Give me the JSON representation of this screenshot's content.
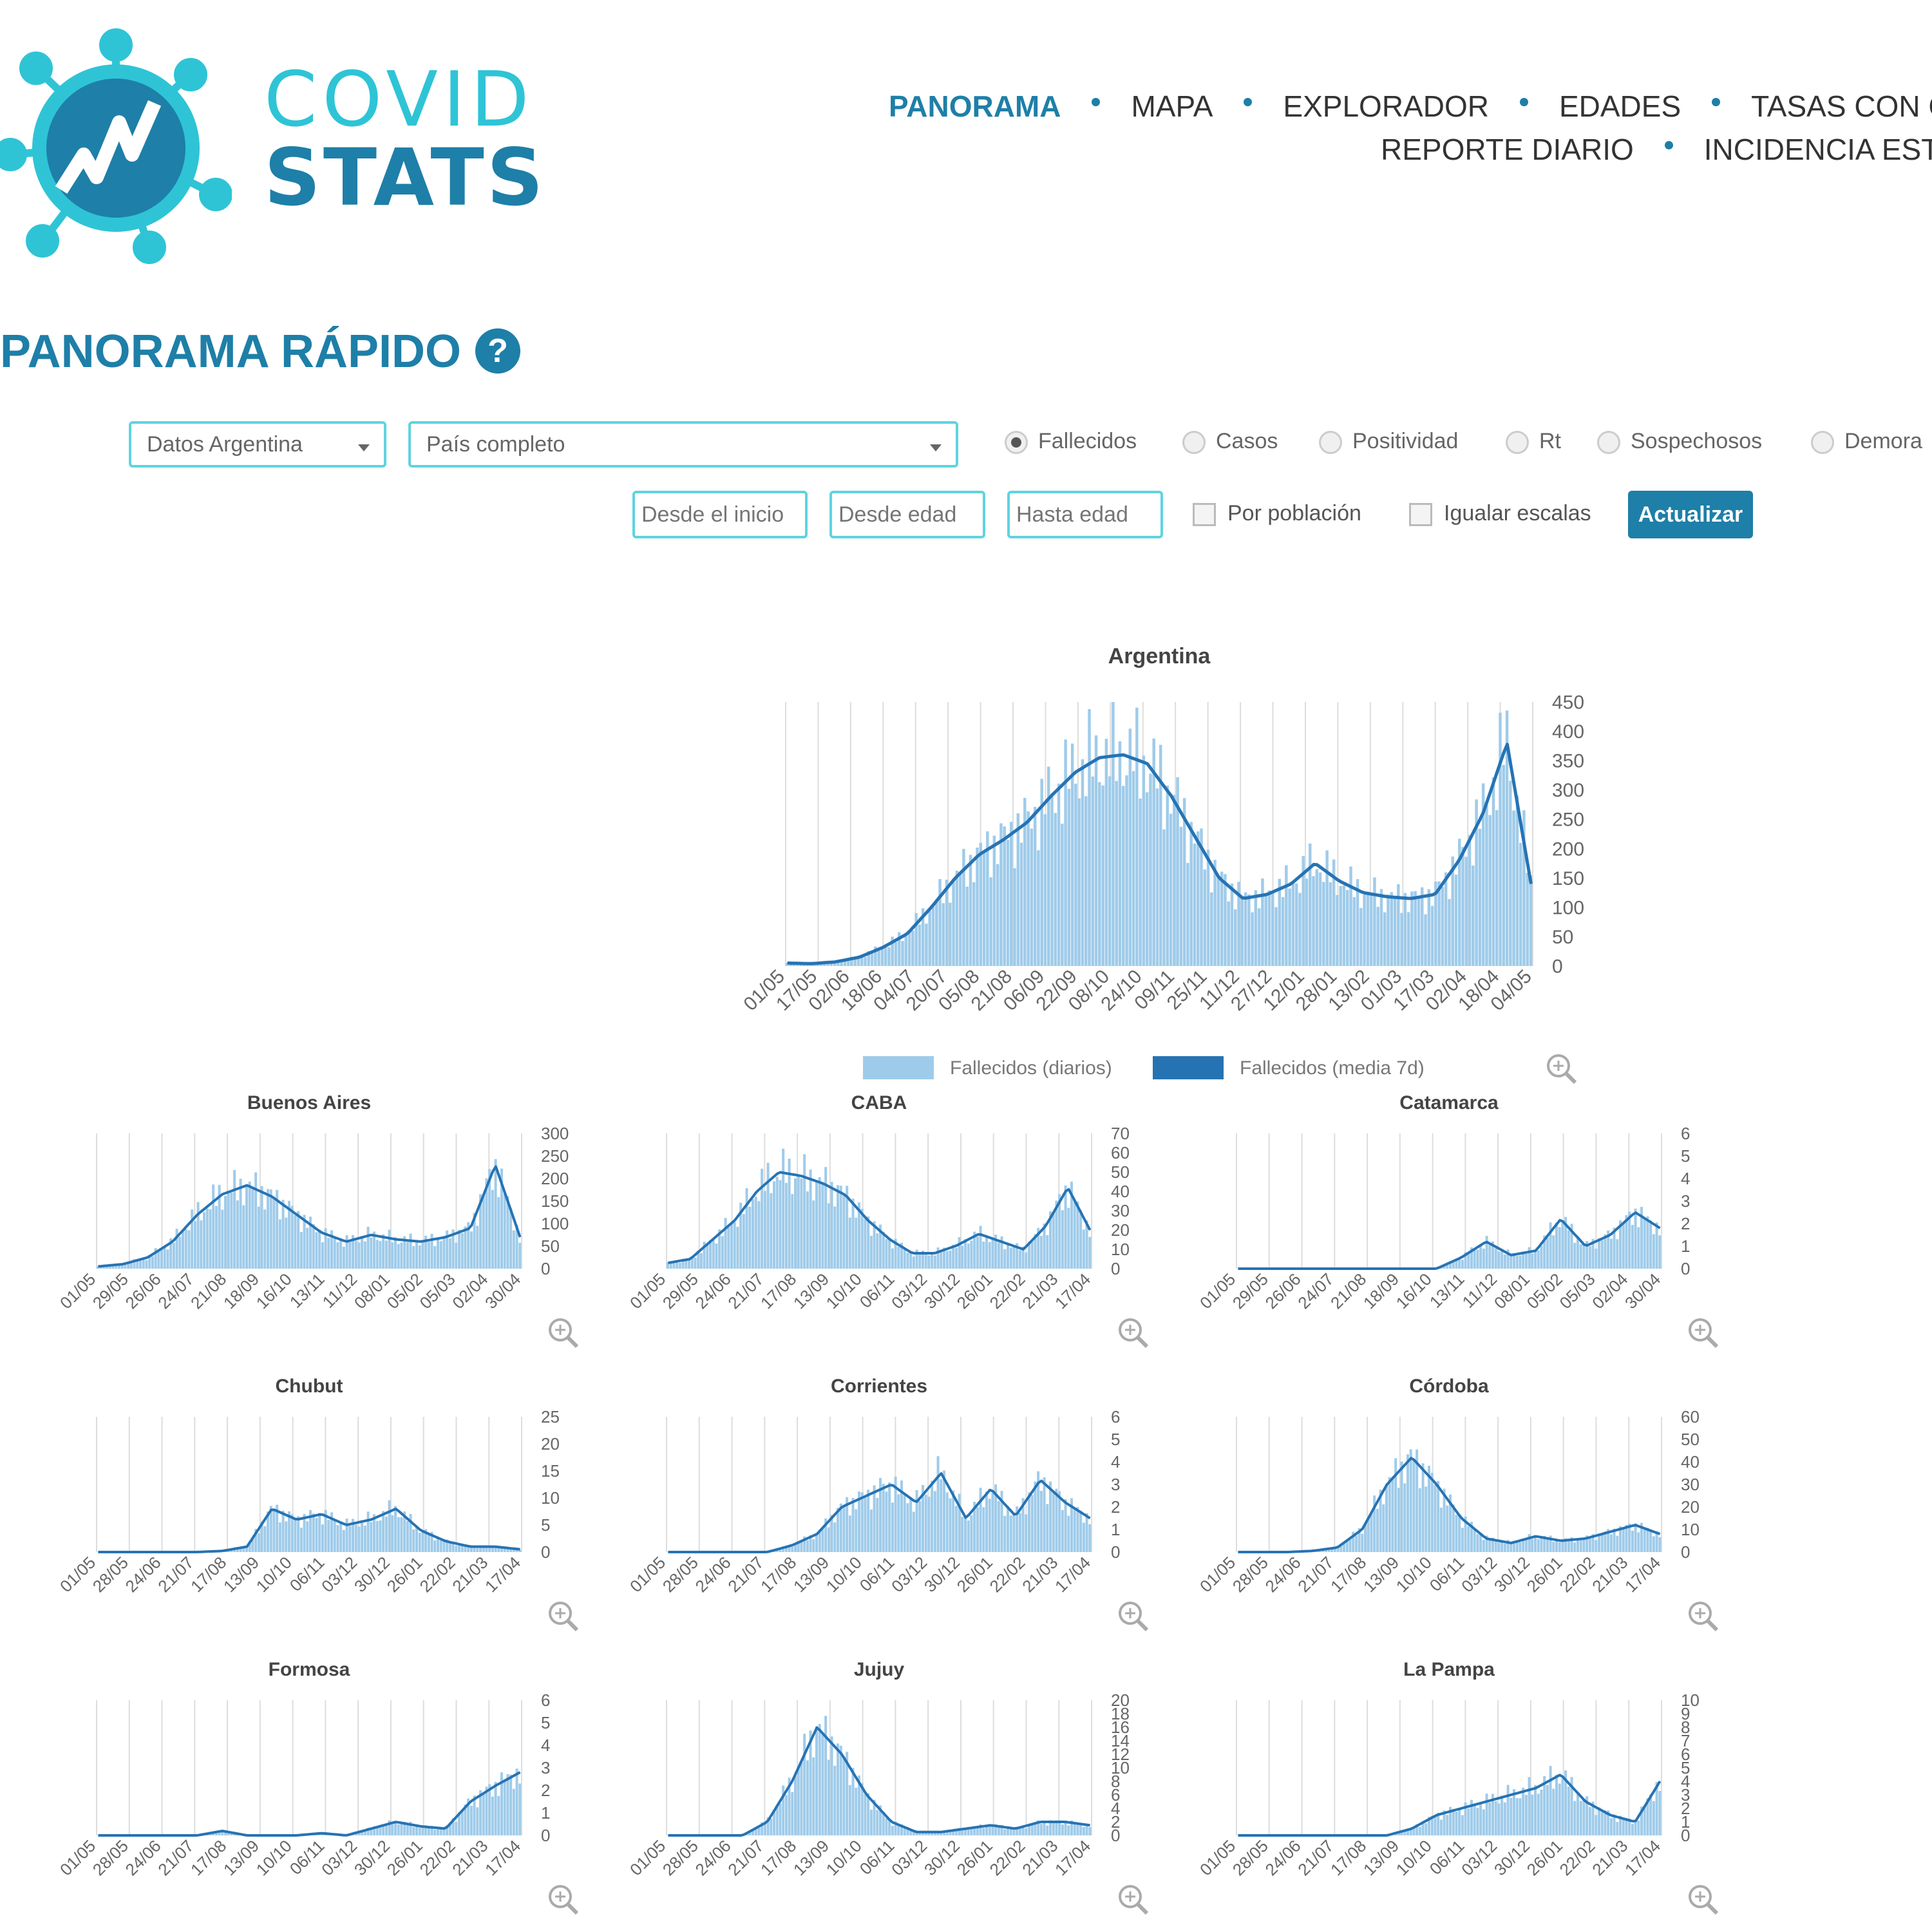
{
  "brand": {
    "line1": "COVID",
    "line2": "STATS"
  },
  "nav": {
    "row1": [
      "PANORAMA",
      "MAPA",
      "EXPLORADOR",
      "EDADES",
      "TASAS CON C"
    ],
    "row2": [
      "REPORTE DIARIO",
      "INCIDENCIA ESTI"
    ]
  },
  "page_title": "PANORAMA RÁPIDO",
  "help_glyph": "?",
  "filters": {
    "source": "Datos Argentina",
    "region": "País completo",
    "metrics": [
      "Fallecidos",
      "Casos",
      "Positividad",
      "Rt",
      "Sospechosos",
      "Demora"
    ],
    "selected_metric": "Fallecidos",
    "from_date_placeholder": "Desde el inicio",
    "from_age_placeholder": "Desde edad",
    "to_age_placeholder": "Hasta edad",
    "per_population": "Por población",
    "equal_scales": "Igualar escalas",
    "update_button": "Actualizar"
  },
  "icons": [
    "covid-logo-icon",
    "help-icon",
    "zoom-in-icon",
    "caret-down-icon"
  ],
  "colors": {
    "brand_dark": "#1e7fa8",
    "brand_light": "#2ec4d6",
    "bar": "#9fcbea",
    "line": "#2673b3"
  },
  "chart_data": [
    {
      "type": "bar",
      "title": "Argentina",
      "x_ticks": [
        "01/05",
        "17/05",
        "02/06",
        "18/06",
        "04/07",
        "20/07",
        "05/08",
        "21/08",
        "06/09",
        "22/09",
        "08/10",
        "24/10",
        "09/11",
        "25/11",
        "11/12",
        "27/12",
        "12/01",
        "28/01",
        "13/02",
        "01/03",
        "17/03",
        "02/04",
        "18/04",
        "04/05"
      ],
      "y_ticks": [
        "450",
        "400",
        "350",
        "300",
        "250",
        "200",
        "150",
        "100",
        "50",
        "0"
      ],
      "ylim": [
        0,
        450
      ],
      "legend": [
        "Fallecidos (diarios)",
        "Fallecidos (media 7d)"
      ],
      "legend_position": "bottom",
      "series": [
        {
          "name": "Fallecidos (media 7d)",
          "values": [
            5,
            4,
            7,
            15,
            32,
            55,
            100,
            150,
            190,
            215,
            245,
            290,
            330,
            355,
            360,
            345,
            290,
            220,
            150,
            115,
            122,
            140,
            175,
            145,
            125,
            118,
            115,
            122,
            180,
            260,
            380,
            140
          ]
        }
      ]
    },
    {
      "type": "bar",
      "title": "Buenos Aires",
      "x_ticks": [
        "01/05",
        "29/05",
        "26/06",
        "24/07",
        "21/08",
        "18/09",
        "16/10",
        "13/11",
        "11/12",
        "08/01",
        "05/02",
        "05/03",
        "02/04",
        "30/04"
      ],
      "y_ticks": [
        "300",
        "250",
        "200",
        "150",
        "100",
        "50",
        "0"
      ],
      "ylim": [
        0,
        300
      ],
      "series": [
        {
          "values": [
            5,
            10,
            25,
            60,
            120,
            165,
            185,
            160,
            120,
            80,
            60,
            75,
            65,
            60,
            70,
            90,
            230,
            70
          ]
        }
      ]
    },
    {
      "type": "bar",
      "title": "CABA",
      "x_ticks": [
        "01/05",
        "29/05",
        "24/06",
        "21/07",
        "17/08",
        "13/09",
        "10/10",
        "06/11",
        "03/12",
        "30/12",
        "26/01",
        "22/02",
        "21/03",
        "17/04"
      ],
      "y_ticks": [
        "70",
        "60",
        "50",
        "40",
        "30",
        "20",
        "10",
        "0"
      ],
      "ylim": [
        0,
        70
      ],
      "series": [
        {
          "values": [
            3,
            5,
            15,
            25,
            40,
            50,
            48,
            44,
            38,
            25,
            15,
            8,
            8,
            12,
            18,
            14,
            10,
            22,
            42,
            20
          ]
        }
      ]
    },
    {
      "type": "bar",
      "title": "Catamarca",
      "x_ticks": [
        "01/05",
        "29/05",
        "26/06",
        "24/07",
        "21/08",
        "18/09",
        "16/10",
        "13/11",
        "11/12",
        "08/01",
        "05/02",
        "05/03",
        "02/04",
        "30/04"
      ],
      "y_ticks": [
        "6",
        "5",
        "4",
        "3",
        "2",
        "1",
        "0"
      ],
      "ylim": [
        0,
        6
      ],
      "series": [
        {
          "values": [
            0,
            0,
            0,
            0,
            0,
            0,
            0,
            0,
            0,
            0.5,
            1.2,
            0.6,
            0.8,
            2.2,
            1,
            1.5,
            2.5,
            1.8
          ]
        }
      ]
    },
    {
      "type": "bar",
      "title": "Chubut",
      "x_ticks": [
        "01/05",
        "28/05",
        "24/06",
        "21/07",
        "17/08",
        "13/09",
        "10/10",
        "06/11",
        "03/12",
        "30/12",
        "26/01",
        "22/02",
        "21/03",
        "17/04"
      ],
      "y_ticks": [
        "25",
        "20",
        "15",
        "10",
        "5",
        "0"
      ],
      "ylim": [
        0,
        25
      ],
      "series": [
        {
          "values": [
            0,
            0,
            0,
            0,
            0,
            0.2,
            1,
            8,
            6,
            7,
            5,
            6,
            8,
            4,
            2,
            1,
            1,
            0.5
          ]
        }
      ]
    },
    {
      "type": "bar",
      "title": "Corrientes",
      "x_ticks": [
        "01/05",
        "28/05",
        "24/06",
        "21/07",
        "17/08",
        "13/09",
        "10/10",
        "06/11",
        "03/12",
        "30/12",
        "26/01",
        "22/02",
        "21/03",
        "17/04"
      ],
      "y_ticks": [
        "6",
        "5",
        "4",
        "3",
        "2",
        "1",
        "0"
      ],
      "ylim": [
        0,
        6
      ],
      "series": [
        {
          "values": [
            0,
            0,
            0,
            0,
            0,
            0.3,
            0.8,
            2,
            2.5,
            3,
            2.2,
            3.5,
            1.5,
            2.8,
            1.6,
            3.2,
            2.2,
            1.5
          ]
        }
      ]
    },
    {
      "type": "bar",
      "title": "Córdoba",
      "x_ticks": [
        "01/05",
        "28/05",
        "24/06",
        "21/07",
        "17/08",
        "13/09",
        "10/10",
        "06/11",
        "03/12",
        "30/12",
        "26/01",
        "22/02",
        "21/03",
        "17/04"
      ],
      "y_ticks": [
        "60",
        "50",
        "40",
        "30",
        "20",
        "10",
        "0"
      ],
      "ylim": [
        0,
        60
      ],
      "series": [
        {
          "values": [
            0,
            0,
            0,
            0.5,
            2,
            10,
            30,
            42,
            30,
            15,
            6,
            4,
            7,
            5,
            6,
            9,
            12,
            8
          ]
        }
      ]
    },
    {
      "type": "bar",
      "title": "Formosa",
      "x_ticks": [
        "01/05",
        "28/05",
        "24/06",
        "21/07",
        "17/08",
        "13/09",
        "10/10",
        "06/11",
        "03/12",
        "30/12",
        "26/01",
        "22/02",
        "21/03",
        "17/04"
      ],
      "y_ticks": [
        "6",
        "5",
        "4",
        "3",
        "2",
        "1",
        "0"
      ],
      "ylim": [
        0,
        6
      ],
      "series": [
        {
          "values": [
            0,
            0,
            0,
            0,
            0,
            0.2,
            0,
            0,
            0,
            0.1,
            0,
            0.3,
            0.6,
            0.4,
            0.3,
            1.5,
            2.2,
            2.8
          ]
        }
      ]
    },
    {
      "type": "bar",
      "title": "Jujuy",
      "x_ticks": [
        "01/05",
        "28/05",
        "24/06",
        "21/07",
        "17/08",
        "13/09",
        "10/10",
        "06/11",
        "03/12",
        "30/12",
        "26/01",
        "22/02",
        "21/03",
        "17/04"
      ],
      "y_ticks": [
        "20",
        "18",
        "16",
        "14",
        "12",
        "10",
        "8",
        "6",
        "4",
        "2",
        "0"
      ],
      "ylim": [
        0,
        20
      ],
      "series": [
        {
          "values": [
            0,
            0,
            0,
            0,
            2,
            8,
            16,
            12,
            6,
            2,
            0.5,
            0.5,
            1,
            1.5,
            1,
            2,
            2,
            1.5
          ]
        }
      ]
    },
    {
      "type": "bar",
      "title": "La Pampa",
      "x_ticks": [
        "01/05",
        "28/05",
        "24/06",
        "21/07",
        "17/08",
        "13/09",
        "10/10",
        "06/11",
        "03/12",
        "30/12",
        "26/01",
        "22/02",
        "21/03",
        "17/04"
      ],
      "y_ticks": [
        "10",
        "9",
        "8",
        "7",
        "6",
        "5",
        "4",
        "3",
        "2",
        "1",
        "0"
      ],
      "ylim": [
        0,
        10
      ],
      "series": [
        {
          "values": [
            0,
            0,
            0,
            0,
            0,
            0,
            0,
            0.5,
            1.5,
            2,
            2.5,
            3,
            3.5,
            4.5,
            2.5,
            1.5,
            1,
            4
          ]
        }
      ]
    }
  ]
}
